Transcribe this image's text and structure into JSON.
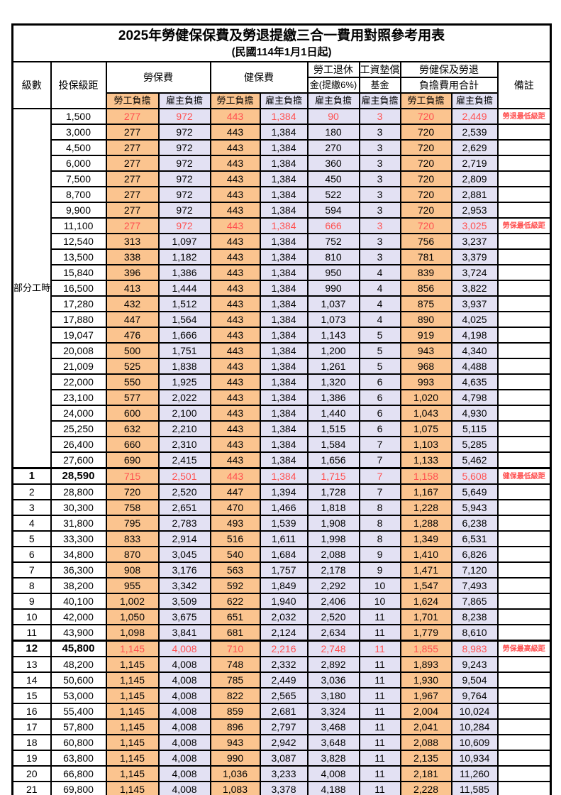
{
  "title": "2025年勞健保保費及勞退提繳三合一費用對照參考用表",
  "subtitle": "(民國114年1月1日起)",
  "headers": {
    "level": "級數",
    "bracket": "投保級距",
    "labor_group": "勞保費",
    "health_group": "健保費",
    "pension_line1": "勞工退休",
    "pension_line2": "金(提繳6%)",
    "fund_line1": "工資墊償",
    "fund_line2": "基金",
    "total_line1": "勞健保及勞退",
    "total_line2": "負擔費用合計",
    "remark": "備註",
    "employee": "勞工負擔",
    "employer": "雇主負擔"
  },
  "part_time_label": "部分工時",
  "part_time_rows": 23,
  "value_column_names": [
    "labor-ins-employee",
    "labor-ins-employer",
    "health-ins-employee",
    "health-ins-employer",
    "pension-employer",
    "wage-fund-employer",
    "total-employee",
    "total-employer"
  ],
  "value_column_kinds": [
    "emp",
    "er",
    "emp",
    "er",
    "er",
    "er",
    "emp",
    "er"
  ],
  "colors": {
    "employee_bg": "#FBC48F",
    "employer_bg": "#E3E1F3",
    "highlight_text": "#FF5050",
    "note_text": "#FF4040",
    "border": "#000000"
  },
  "rows": [
    {
      "level": "",
      "bracket": "1,500",
      "values": [
        "277",
        "972",
        "443",
        "1,384",
        "90",
        "3",
        "720",
        "2,449"
      ],
      "note": "勞退最低級距",
      "red": true,
      "bold": false
    },
    {
      "level": "",
      "bracket": "3,000",
      "values": [
        "277",
        "972",
        "443",
        "1,384",
        "180",
        "3",
        "720",
        "2,539"
      ],
      "note": "",
      "red": false,
      "bold": false
    },
    {
      "level": "",
      "bracket": "4,500",
      "values": [
        "277",
        "972",
        "443",
        "1,384",
        "270",
        "3",
        "720",
        "2,629"
      ],
      "note": "",
      "red": false,
      "bold": false
    },
    {
      "level": "",
      "bracket": "6,000",
      "values": [
        "277",
        "972",
        "443",
        "1,384",
        "360",
        "3",
        "720",
        "2,719"
      ],
      "note": "",
      "red": false,
      "bold": false
    },
    {
      "level": "",
      "bracket": "7,500",
      "values": [
        "277",
        "972",
        "443",
        "1,384",
        "450",
        "3",
        "720",
        "2,809"
      ],
      "note": "",
      "red": false,
      "bold": false
    },
    {
      "level": "",
      "bracket": "8,700",
      "values": [
        "277",
        "972",
        "443",
        "1,384",
        "522",
        "3",
        "720",
        "2,881"
      ],
      "note": "",
      "red": false,
      "bold": false
    },
    {
      "level": "",
      "bracket": "9,900",
      "values": [
        "277",
        "972",
        "443",
        "1,384",
        "594",
        "3",
        "720",
        "2,953"
      ],
      "note": "",
      "red": false,
      "bold": false
    },
    {
      "level": "",
      "bracket": "11,100",
      "values": [
        "277",
        "972",
        "443",
        "1,384",
        "666",
        "3",
        "720",
        "3,025"
      ],
      "note": "勞保最低級距",
      "red": true,
      "bold": false
    },
    {
      "level": "",
      "bracket": "12,540",
      "values": [
        "313",
        "1,097",
        "443",
        "1,384",
        "752",
        "3",
        "756",
        "3,237"
      ],
      "note": "",
      "red": false,
      "bold": false
    },
    {
      "level": "",
      "bracket": "13,500",
      "values": [
        "338",
        "1,182",
        "443",
        "1,384",
        "810",
        "3",
        "781",
        "3,379"
      ],
      "note": "",
      "red": false,
      "bold": false
    },
    {
      "level": "",
      "bracket": "15,840",
      "values": [
        "396",
        "1,386",
        "443",
        "1,384",
        "950",
        "4",
        "839",
        "3,724"
      ],
      "note": "",
      "red": false,
      "bold": false
    },
    {
      "level": "",
      "bracket": "16,500",
      "values": [
        "413",
        "1,444",
        "443",
        "1,384",
        "990",
        "4",
        "856",
        "3,822"
      ],
      "note": "",
      "red": false,
      "bold": false
    },
    {
      "level": "",
      "bracket": "17,280",
      "values": [
        "432",
        "1,512",
        "443",
        "1,384",
        "1,037",
        "4",
        "875",
        "3,937"
      ],
      "note": "",
      "red": false,
      "bold": false
    },
    {
      "level": "",
      "bracket": "17,880",
      "values": [
        "447",
        "1,564",
        "443",
        "1,384",
        "1,073",
        "4",
        "890",
        "4,025"
      ],
      "note": "",
      "red": false,
      "bold": false
    },
    {
      "level": "",
      "bracket": "19,047",
      "values": [
        "476",
        "1,666",
        "443",
        "1,384",
        "1,143",
        "5",
        "919",
        "4,198"
      ],
      "note": "",
      "red": false,
      "bold": false
    },
    {
      "level": "",
      "bracket": "20,008",
      "values": [
        "500",
        "1,751",
        "443",
        "1,384",
        "1,200",
        "5",
        "943",
        "4,340"
      ],
      "note": "",
      "red": false,
      "bold": false
    },
    {
      "level": "",
      "bracket": "21,009",
      "values": [
        "525",
        "1,838",
        "443",
        "1,384",
        "1,261",
        "5",
        "968",
        "4,488"
      ],
      "note": "",
      "red": false,
      "bold": false
    },
    {
      "level": "",
      "bracket": "22,000",
      "values": [
        "550",
        "1,925",
        "443",
        "1,384",
        "1,320",
        "6",
        "993",
        "4,635"
      ],
      "note": "",
      "red": false,
      "bold": false
    },
    {
      "level": "",
      "bracket": "23,100",
      "values": [
        "577",
        "2,022",
        "443",
        "1,384",
        "1,386",
        "6",
        "1,020",
        "4,798"
      ],
      "note": "",
      "red": false,
      "bold": false
    },
    {
      "level": "",
      "bracket": "24,000",
      "values": [
        "600",
        "2,100",
        "443",
        "1,384",
        "1,440",
        "6",
        "1,043",
        "4,930"
      ],
      "note": "",
      "red": false,
      "bold": false
    },
    {
      "level": "",
      "bracket": "25,250",
      "values": [
        "632",
        "2,210",
        "443",
        "1,384",
        "1,515",
        "6",
        "1,075",
        "5,115"
      ],
      "note": "",
      "red": false,
      "bold": false
    },
    {
      "level": "",
      "bracket": "26,400",
      "values": [
        "660",
        "2,310",
        "443",
        "1,384",
        "1,584",
        "7",
        "1,103",
        "5,285"
      ],
      "note": "",
      "red": false,
      "bold": false
    },
    {
      "level": "",
      "bracket": "27,600",
      "values": [
        "690",
        "2,415",
        "443",
        "1,384",
        "1,656",
        "7",
        "1,133",
        "5,462"
      ],
      "note": "",
      "red": false,
      "bold": false
    },
    {
      "level": "1",
      "bracket": "28,590",
      "values": [
        "715",
        "2,501",
        "443",
        "1,384",
        "1,715",
        "7",
        "1,158",
        "5,608"
      ],
      "note": "健保最低級距",
      "red": true,
      "bold": true
    },
    {
      "level": "2",
      "bracket": "28,800",
      "values": [
        "720",
        "2,520",
        "447",
        "1,394",
        "1,728",
        "7",
        "1,167",
        "5,649"
      ],
      "note": "",
      "red": false,
      "bold": false
    },
    {
      "level": "3",
      "bracket": "30,300",
      "values": [
        "758",
        "2,651",
        "470",
        "1,466",
        "1,818",
        "8",
        "1,228",
        "5,943"
      ],
      "note": "",
      "red": false,
      "bold": false
    },
    {
      "level": "4",
      "bracket": "31,800",
      "values": [
        "795",
        "2,783",
        "493",
        "1,539",
        "1,908",
        "8",
        "1,288",
        "6,238"
      ],
      "note": "",
      "red": false,
      "bold": false
    },
    {
      "level": "5",
      "bracket": "33,300",
      "values": [
        "833",
        "2,914",
        "516",
        "1,611",
        "1,998",
        "8",
        "1,349",
        "6,531"
      ],
      "note": "",
      "red": false,
      "bold": false
    },
    {
      "level": "6",
      "bracket": "34,800",
      "values": [
        "870",
        "3,045",
        "540",
        "1,684",
        "2,088",
        "9",
        "1,410",
        "6,826"
      ],
      "note": "",
      "red": false,
      "bold": false
    },
    {
      "level": "7",
      "bracket": "36,300",
      "values": [
        "908",
        "3,176",
        "563",
        "1,757",
        "2,178",
        "9",
        "1,471",
        "7,120"
      ],
      "note": "",
      "red": false,
      "bold": false
    },
    {
      "level": "8",
      "bracket": "38,200",
      "values": [
        "955",
        "3,342",
        "592",
        "1,849",
        "2,292",
        "10",
        "1,547",
        "7,493"
      ],
      "note": "",
      "red": false,
      "bold": false
    },
    {
      "level": "9",
      "bracket": "40,100",
      "values": [
        "1,002",
        "3,509",
        "622",
        "1,940",
        "2,406",
        "10",
        "1,624",
        "7,865"
      ],
      "note": "",
      "red": false,
      "bold": false
    },
    {
      "level": "10",
      "bracket": "42,000",
      "values": [
        "1,050",
        "3,675",
        "651",
        "2,032",
        "2,520",
        "11",
        "1,701",
        "8,238"
      ],
      "note": "",
      "red": false,
      "bold": false
    },
    {
      "level": "11",
      "bracket": "43,900",
      "values": [
        "1,098",
        "3,841",
        "681",
        "2,124",
        "2,634",
        "11",
        "1,779",
        "8,610"
      ],
      "note": "",
      "red": false,
      "bold": false
    },
    {
      "level": "12",
      "bracket": "45,800",
      "values": [
        "1,145",
        "4,008",
        "710",
        "2,216",
        "2,748",
        "11",
        "1,855",
        "8,983"
      ],
      "note": "勞保最高級距",
      "red": true,
      "bold": true
    },
    {
      "level": "13",
      "bracket": "48,200",
      "values": [
        "1,145",
        "4,008",
        "748",
        "2,332",
        "2,892",
        "11",
        "1,893",
        "9,243"
      ],
      "note": "",
      "red": false,
      "bold": false
    },
    {
      "level": "14",
      "bracket": "50,600",
      "values": [
        "1,145",
        "4,008",
        "785",
        "2,449",
        "3,036",
        "11",
        "1,930",
        "9,504"
      ],
      "note": "",
      "red": false,
      "bold": false
    },
    {
      "level": "15",
      "bracket": "53,000",
      "values": [
        "1,145",
        "4,008",
        "822",
        "2,565",
        "3,180",
        "11",
        "1,967",
        "9,764"
      ],
      "note": "",
      "red": false,
      "bold": false
    },
    {
      "level": "16",
      "bracket": "55,400",
      "values": [
        "1,145",
        "4,008",
        "859",
        "2,681",
        "3,324",
        "11",
        "2,004",
        "10,024"
      ],
      "note": "",
      "red": false,
      "bold": false
    },
    {
      "level": "17",
      "bracket": "57,800",
      "values": [
        "1,145",
        "4,008",
        "896",
        "2,797",
        "3,468",
        "11",
        "2,041",
        "10,284"
      ],
      "note": "",
      "red": false,
      "bold": false
    },
    {
      "level": "18",
      "bracket": "60,800",
      "values": [
        "1,145",
        "4,008",
        "943",
        "2,942",
        "3,648",
        "11",
        "2,088",
        "10,609"
      ],
      "note": "",
      "red": false,
      "bold": false
    },
    {
      "level": "19",
      "bracket": "63,800",
      "values": [
        "1,145",
        "4,008",
        "990",
        "3,087",
        "3,828",
        "11",
        "2,135",
        "10,934"
      ],
      "note": "",
      "red": false,
      "bold": false
    },
    {
      "level": "20",
      "bracket": "66,800",
      "values": [
        "1,145",
        "4,008",
        "1,036",
        "3,233",
        "4,008",
        "11",
        "2,181",
        "11,260"
      ],
      "note": "",
      "red": false,
      "bold": false
    },
    {
      "level": "21",
      "bracket": "69,800",
      "values": [
        "1,145",
        "4,008",
        "1,083",
        "3,378",
        "4,188",
        "11",
        "2,228",
        "11,585"
      ],
      "note": "",
      "red": false,
      "bold": false
    }
  ]
}
